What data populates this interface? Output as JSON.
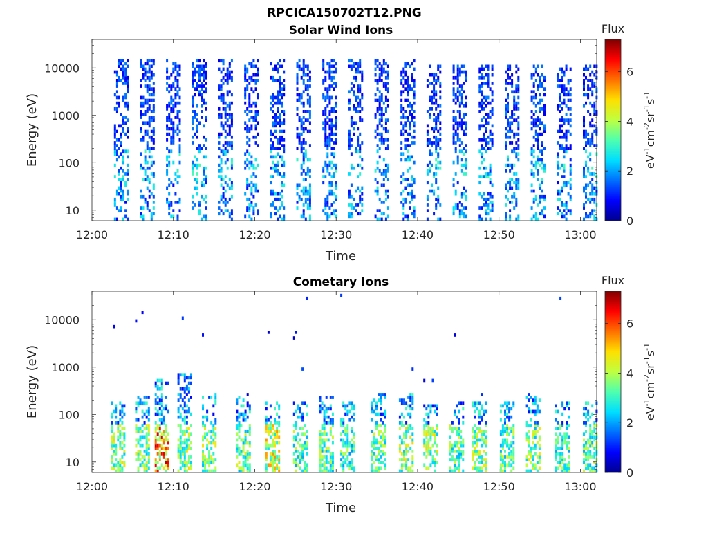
{
  "figure_title": "RPCICA150702T12.PNG",
  "colorscale": [
    "#00008f",
    "#0000ff",
    "#006fff",
    "#00dfff",
    "#4fffaf",
    "#bfff40",
    "#ffdf00",
    "#ff7000",
    "#ff0000",
    "#800000"
  ],
  "chart_data": [
    {
      "type": "heatmap",
      "title": "Solar Wind Ions",
      "xlabel": "Time",
      "ylabel": "Energy (eV)",
      "x_ticks": [
        "12:00",
        "12:10",
        "12:20",
        "12:30",
        "12:40",
        "12:50",
        "13:00"
      ],
      "x_tick_minutes": [
        0,
        10,
        20,
        30,
        40,
        50,
        60
      ],
      "xlim_minutes": [
        0,
        62
      ],
      "y_scale": "log",
      "y_ticks": [
        "10",
        "100",
        "1000",
        "10000"
      ],
      "y_tick_values": [
        10,
        100,
        1000,
        10000
      ],
      "ylim": [
        6,
        40000
      ],
      "colorbar": {
        "label": "Flux",
        "unit": "eV-1cm-2sr-1s-1",
        "ticks": [
          "0",
          "2",
          "4",
          "6"
        ],
        "tick_values": [
          0,
          2,
          4,
          6
        ],
        "range": [
          0,
          7.3
        ]
      },
      "bursts": [
        {
          "t": 3.6,
          "emax": 15000,
          "lo": 2.5
        },
        {
          "t": 6.8,
          "emax": 15000,
          "lo": 3.0
        },
        {
          "t": 10.0,
          "emax": 15000,
          "lo": 2.5
        },
        {
          "t": 13.2,
          "emax": 15000,
          "lo": 2.5
        },
        {
          "t": 16.4,
          "emax": 15000,
          "lo": 2.6
        },
        {
          "t": 19.6,
          "emax": 15000,
          "lo": 2.5
        },
        {
          "t": 22.8,
          "emax": 15000,
          "lo": 2.5
        },
        {
          "t": 26.0,
          "emax": 15000,
          "lo": 2.6
        },
        {
          "t": 29.2,
          "emax": 15000,
          "lo": 2.5
        },
        {
          "t": 32.4,
          "emax": 15000,
          "lo": 2.5
        },
        {
          "t": 35.6,
          "emax": 15000,
          "lo": 2.6
        },
        {
          "t": 38.8,
          "emax": 15000,
          "lo": 2.5
        },
        {
          "t": 42.0,
          "emax": 12000,
          "lo": 2.5
        },
        {
          "t": 45.2,
          "emax": 12000,
          "lo": 2.5
        },
        {
          "t": 48.4,
          "emax": 12000,
          "lo": 2.5
        },
        {
          "t": 51.6,
          "emax": 12000,
          "lo": 2.5
        },
        {
          "t": 54.8,
          "emax": 12000,
          "lo": 2.5
        },
        {
          "t": 58.0,
          "emax": 12000,
          "lo": 2.5
        },
        {
          "t": 61.2,
          "emax": 12000,
          "lo": 2.5
        }
      ]
    },
    {
      "type": "heatmap",
      "title": "Cometary Ions",
      "xlabel": "Time",
      "ylabel": "Energy (eV)",
      "x_ticks": [
        "12:00",
        "12:10",
        "12:20",
        "12:30",
        "12:40",
        "12:50",
        "13:00"
      ],
      "x_tick_minutes": [
        0,
        10,
        20,
        30,
        40,
        50,
        60
      ],
      "xlim_minutes": [
        0,
        62
      ],
      "y_scale": "log",
      "y_ticks": [
        "10",
        "100",
        "1000",
        "10000"
      ],
      "y_tick_values": [
        10,
        100,
        1000,
        10000
      ],
      "ylim": [
        6,
        40000
      ],
      "colorbar": {
        "label": "Flux",
        "unit": "eV-1cm-2sr-1s-1",
        "ticks": [
          "0",
          "2",
          "4",
          "6"
        ],
        "tick_values": [
          0,
          2,
          4,
          6
        ],
        "range": [
          0,
          7.3
        ]
      },
      "bursts": [
        {
          "t": 3.2,
          "emax": 200,
          "peak": 5.0
        },
        {
          "t": 6.2,
          "emax": 250,
          "peak": 4.8
        },
        {
          "t": 8.6,
          "emax": 600,
          "peak": 7.0
        },
        {
          "t": 11.4,
          "emax": 700,
          "peak": 5.0
        },
        {
          "t": 14.4,
          "emax": 300,
          "peak": 4.8
        },
        {
          "t": 18.6,
          "emax": 250,
          "peak": 4.6
        },
        {
          "t": 22.2,
          "emax": 200,
          "peak": 5.5
        },
        {
          "t": 25.6,
          "emax": 200,
          "peak": 4.5
        },
        {
          "t": 28.8,
          "emax": 250,
          "peak": 4.5
        },
        {
          "t": 31.4,
          "emax": 200,
          "peak": 4.2
        },
        {
          "t": 35.2,
          "emax": 300,
          "peak": 4.5
        },
        {
          "t": 38.6,
          "emax": 300,
          "peak": 5.0
        },
        {
          "t": 41.6,
          "emax": 200,
          "peak": 5.0
        },
        {
          "t": 44.8,
          "emax": 200,
          "peak": 4.5
        },
        {
          "t": 47.6,
          "emax": 200,
          "peak": 4.8
        },
        {
          "t": 51.0,
          "emax": 200,
          "peak": 4.5
        },
        {
          "t": 54.2,
          "emax": 300,
          "peak": 4.8
        },
        {
          "t": 57.8,
          "emax": 200,
          "peak": 4.2
        },
        {
          "t": 61.2,
          "emax": 200,
          "peak": 4.5
        }
      ]
    }
  ]
}
